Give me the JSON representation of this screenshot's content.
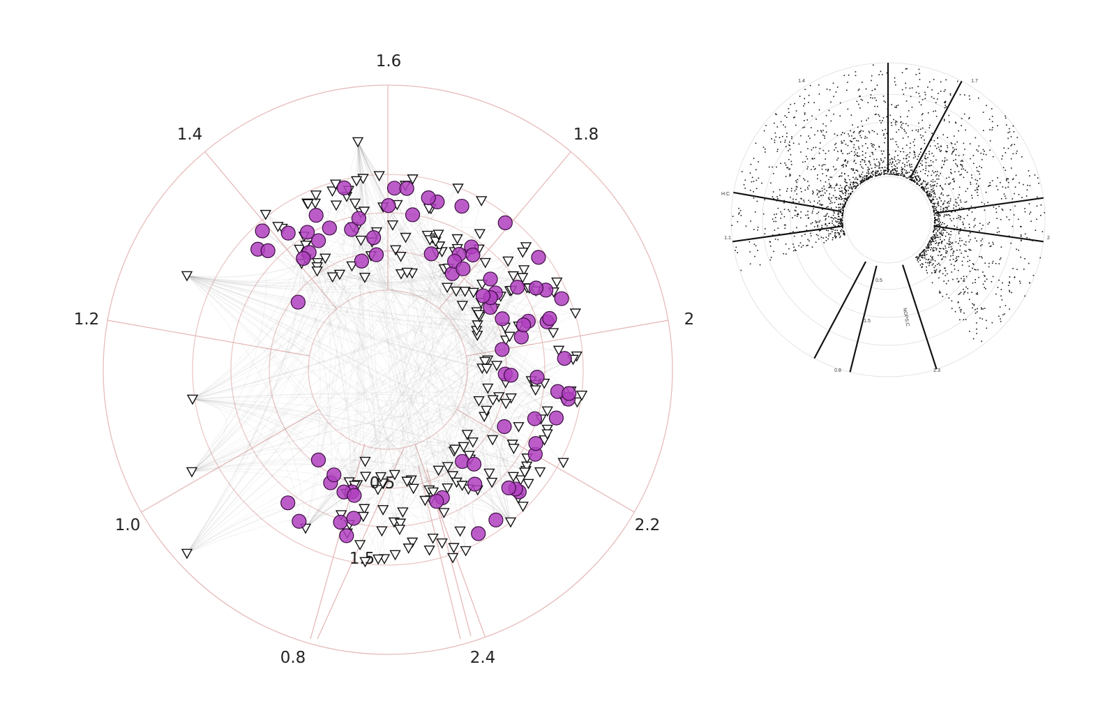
{
  "chart_data": [
    {
      "type": "scatter",
      "title": "",
      "coordinate_system": "polar (segmented circular axes)",
      "outer_axis_ticks": [
        "1.6",
        "1.8",
        "2",
        "2.2",
        "2.4",
        "0.8",
        "1.0",
        "1.2",
        "1.4"
      ],
      "inner_axis_ticks": [
        "0.5",
        "1.5"
      ],
      "grid": true,
      "colors": {
        "circles": "#b040c0",
        "triangles_stroke": "#111111",
        "grid": "#e4b4b4",
        "edges": "#999999"
      },
      "series": [
        {
          "marker": "circle",
          "fill": "#b040c0"
        },
        {
          "marker": "triangle-down",
          "fill": "#ffffff"
        }
      ],
      "edges_drawn": true
    },
    {
      "type": "scatter",
      "title": "",
      "coordinate_system": "polar (segmented circular axes)",
      "tick_labels": [
        "1.4",
        "1.7",
        "2",
        "2.3",
        "0.8",
        "1.1",
        "1.5",
        "0.5"
      ],
      "axis_labels": [
        "H:C",
        "NOPS:C"
      ],
      "marker_color": "#111111",
      "grid": true
    }
  ]
}
